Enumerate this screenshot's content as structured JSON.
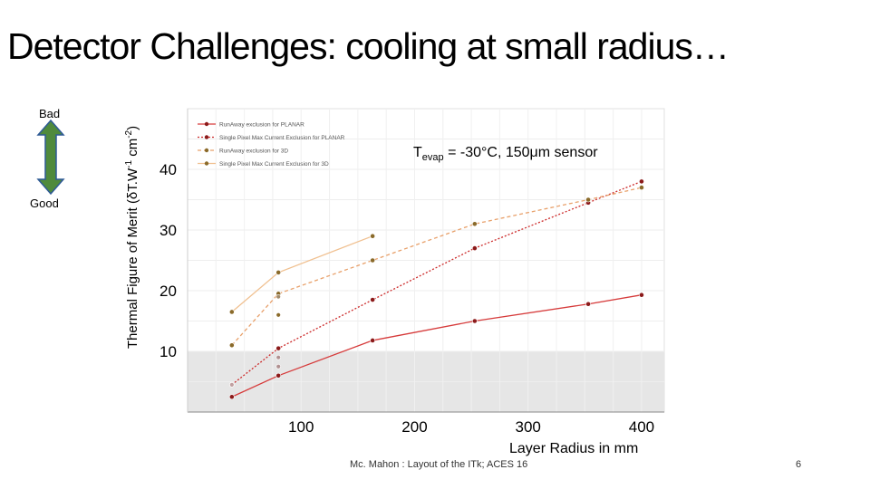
{
  "slide": {
    "title": "Detector Challenges: cooling at small radius…",
    "footer": "Mc. Mahon : Layout of the ITk; ACES 16",
    "page_number": "6"
  },
  "quality_scale": {
    "bad_label": "Bad",
    "good_label": "Good",
    "arrow_color": "#4f8a3c",
    "arrow_outline": "#2e5a96"
  },
  "annotation": {
    "prefix": "T",
    "subscript": "evap",
    "suffix": " = -30°C, 150μm sensor"
  },
  "chart_data": {
    "type": "line",
    "title": "",
    "xlabel": "Layer Radius in mm",
    "ylabel": {
      "main": "Thermal Figure of Merit (δT.W",
      "exp1": "-1",
      "mid": " cm",
      "exp2": "-2",
      "end": ")"
    },
    "x_ticks": [
      100,
      200,
      300,
      400
    ],
    "y_ticks": [
      10,
      20,
      30,
      40
    ],
    "xlim": [
      0,
      420
    ],
    "ylim": [
      0,
      50
    ],
    "shaded_band": [
      0,
      10
    ],
    "grid": true,
    "legend_position": "top-left",
    "series": [
      {
        "name": "RunAway exclusion for PLANAR",
        "color": "#d63b3b",
        "dash": "solid",
        "marker": "#8b1a1a",
        "x": [
          39,
          80,
          163,
          253,
          353,
          400
        ],
        "y": [
          2.5,
          6,
          11.8,
          15,
          17.8,
          19.3
        ]
      },
      {
        "name": "Single Pixel Max Current Exclusion for PLANAR",
        "color": "#cc2a2a",
        "dash": "dotted",
        "marker": "#8b1a1a",
        "x": [
          39,
          80,
          163,
          253,
          353,
          400
        ],
        "y": [
          4.5,
          10.5,
          18.5,
          27,
          34.5,
          38
        ]
      },
      {
        "name": "RunAway exclusion for 3D",
        "color": "#e8a06a",
        "dash": "dashed",
        "marker": "#8a6a2a",
        "x": [
          39,
          80,
          163,
          253,
          353,
          400
        ],
        "y": [
          11,
          19.5,
          25,
          31,
          35,
          37
        ]
      },
      {
        "name": "Single Pixel Max Current Exclusion for 3D",
        "color": "#f0c090",
        "dash": "solid",
        "marker": "#8a6a2a",
        "x": [
          39,
          80,
          163
        ],
        "y": [
          16.5,
          23,
          29
        ]
      }
    ],
    "extra_markers": [
      {
        "x": 80,
        "y": 7.5,
        "color": "#b09090"
      },
      {
        "x": 80,
        "y": 9,
        "color": "#b09090"
      },
      {
        "x": 80,
        "y": 16,
        "color": "#8a6a2a"
      },
      {
        "x": 80,
        "y": 19,
        "color": "#a08a6a"
      },
      {
        "x": 39,
        "y": 4.5,
        "color": "#c0a0a0"
      }
    ]
  }
}
